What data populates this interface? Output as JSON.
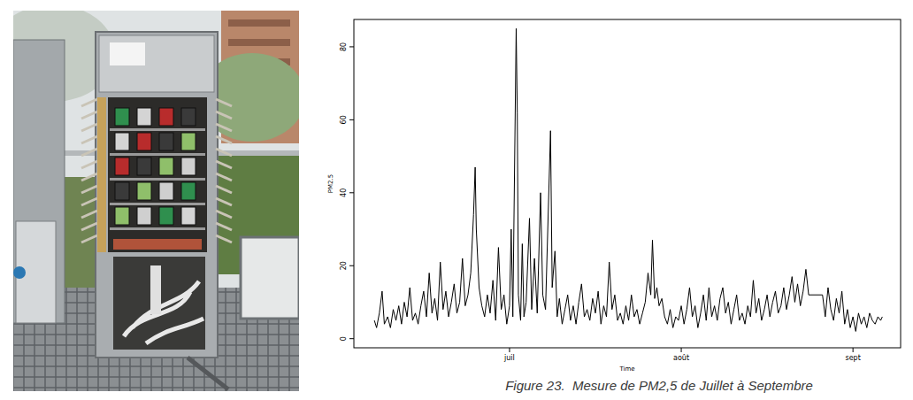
{
  "chart_data": {
    "type": "line",
    "title": "Figure 23.  Mesure de PM2,5 de Juillet à Septembre",
    "x_label": "Time",
    "y_label": "PM2.5",
    "color": "#000000",
    "xlim": [
      -28.1,
      70.6
    ],
    "xticks": [
      {
        "value": 0,
        "label": "juil"
      },
      {
        "value": 31,
        "label": "août"
      },
      {
        "value": 62,
        "label": "sept"
      }
    ],
    "ylim": [
      -2.5,
      87.5
    ],
    "yticks": [
      0,
      20,
      40,
      60,
      80
    ],
    "grid": false,
    "x": [
      -24.4,
      -24.0,
      -23.5,
      -23.0,
      -22.6,
      -22.0,
      -21.5,
      -21.0,
      -20.5,
      -20.0,
      -19.5,
      -19.0,
      -18.5,
      -18.0,
      -17.5,
      -17.0,
      -16.5,
      -16.0,
      -15.5,
      -15.0,
      -14.5,
      -14.0,
      -13.5,
      -13.0,
      -12.5,
      -12.0,
      -11.5,
      -11.0,
      -10.5,
      -10.0,
      -9.5,
      -9.0,
      -8.5,
      -8.0,
      -7.5,
      -7.0,
      -6.5,
      -6.2,
      -6.0,
      -5.5,
      -5.0,
      -4.5,
      -4.0,
      -3.5,
      -3.0,
      -2.5,
      -2.0,
      -1.5,
      -1.0,
      -0.5,
      0.0,
      0.3,
      0.6,
      1.2,
      1.4,
      1.6,
      2.0,
      2.3,
      2.6,
      3.0,
      3.6,
      4.0,
      4.5,
      5.0,
      5.6,
      6.0,
      6.5,
      7.4,
      7.7,
      8.2,
      8.6,
      9.0,
      9.5,
      10.0,
      10.5,
      11.0,
      11.5,
      12.0,
      12.5,
      13.0,
      13.5,
      14.0,
      14.5,
      15.0,
      15.5,
      16.0,
      16.5,
      17.0,
      17.5,
      18.0,
      18.5,
      19.0,
      19.5,
      20.0,
      20.5,
      21.0,
      21.5,
      22.0,
      22.5,
      23.0,
      23.5,
      24.0,
      24.5,
      25.0,
      25.5,
      25.8,
      26.2,
      26.6,
      27.0,
      27.5,
      28.0,
      28.5,
      29.0,
      29.5,
      30.0,
      30.5,
      31.0,
      31.5,
      32.0,
      32.5,
      33.0,
      33.5,
      34.0,
      34.5,
      35.0,
      35.5,
      36.0,
      36.5,
      37.0,
      37.5,
      38.0,
      38.5,
      39.0,
      39.5,
      40.0,
      40.5,
      41.0,
      41.5,
      42.0,
      42.5,
      43.0,
      43.5,
      44.0,
      44.5,
      45.0,
      45.5,
      46.0,
      46.5,
      47.0,
      47.5,
      48.0,
      48.5,
      49.0,
      49.5,
      50.0,
      50.5,
      51.0,
      51.5,
      52.0,
      52.5,
      53.0,
      53.5,
      54.0,
      56.5,
      57.0,
      57.5,
      58.0,
      58.5,
      59.0,
      59.5,
      60.0,
      60.5,
      61.0,
      61.5,
      62.0,
      62.5,
      63.0,
      63.5,
      64.0,
      64.5,
      65.0,
      65.5,
      66.0,
      66.5,
      67.0,
      67.3
    ],
    "values": [
      5,
      3,
      7,
      13,
      4,
      6,
      3,
      8,
      5,
      9,
      4,
      10,
      6,
      14,
      5,
      7,
      4,
      9,
      13,
      6,
      18,
      7,
      11,
      5,
      21,
      8,
      13,
      6,
      10,
      15,
      7,
      10,
      22,
      9,
      12,
      18,
      34,
      47,
      30,
      14,
      9,
      6,
      12,
      7,
      16,
      5,
      25,
      8,
      12,
      4,
      9,
      30,
      6,
      85,
      62,
      12,
      5,
      26,
      6,
      10,
      33,
      8,
      22,
      7,
      40,
      12,
      8,
      57,
      14,
      24,
      6,
      11,
      4,
      8,
      12,
      5,
      9,
      4,
      10,
      15,
      6,
      8,
      5,
      11,
      7,
      13,
      4,
      9,
      6,
      21,
      8,
      12,
      5,
      7,
      4,
      9,
      5,
      12,
      6,
      8,
      4,
      7,
      10,
      18,
      12,
      27,
      11,
      14,
      9,
      11,
      6,
      4,
      8,
      3,
      6,
      5,
      9,
      4,
      8,
      14,
      6,
      9,
      3,
      7,
      12,
      5,
      14,
      6,
      9,
      5,
      11,
      14,
      7,
      10,
      4,
      8,
      12,
      5,
      7,
      4,
      9,
      6,
      16,
      7,
      11,
      5,
      8,
      12,
      6,
      10,
      13,
      7,
      9,
      14,
      8,
      12,
      17,
      10,
      15,
      9,
      13,
      19,
      12,
      12,
      6,
      14,
      8,
      5,
      11,
      7,
      13,
      4,
      8,
      3,
      6,
      2,
      7,
      4,
      6,
      3,
      7,
      5,
      4,
      6,
      5,
      6
    ]
  }
}
